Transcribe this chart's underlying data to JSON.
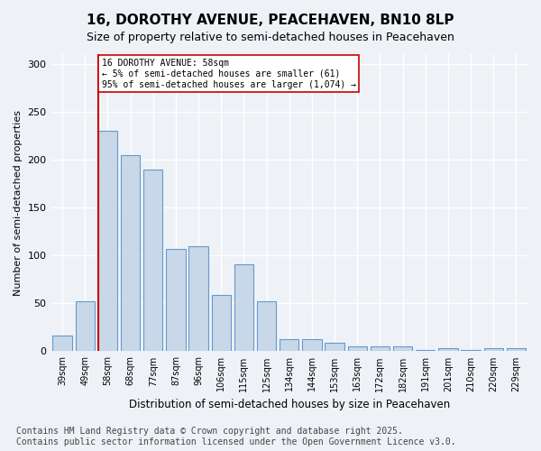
{
  "title_line1": "16, DOROTHY AVENUE, PEACEHAVEN, BN10 8LP",
  "title_line2": "Size of property relative to semi-detached houses in Peacehaven",
  "xlabel": "Distribution of semi-detached houses by size in Peacehaven",
  "ylabel": "Number of semi-detached properties",
  "categories": [
    "39sqm",
    "49sqm",
    "58sqm",
    "68sqm",
    "77sqm",
    "87sqm",
    "96sqm",
    "106sqm",
    "115sqm",
    "125sqm",
    "134sqm",
    "144sqm",
    "153sqm",
    "163sqm",
    "172sqm",
    "182sqm",
    "191sqm",
    "201sqm",
    "210sqm",
    "220sqm",
    "229sqm"
  ],
  "values": [
    16,
    52,
    230,
    205,
    190,
    107,
    110,
    59,
    91,
    52,
    13,
    13,
    9,
    5,
    5,
    5,
    1,
    3,
    1,
    3,
    3
  ],
  "bar_color": "#c8d8e8",
  "bar_edge_color": "#6699cc",
  "red_line_index": 2,
  "annotation_text": "16 DOROTHY AVENUE: 58sqm\n← 5% of semi-detached houses are smaller (61)\n95% of semi-detached houses are larger (1,074) →",
  "annotation_box_color": "#ffffff",
  "annotation_box_edge_color": "#cc0000",
  "red_line_color": "#cc0000",
  "ylim": [
    0,
    310
  ],
  "yticks": [
    0,
    50,
    100,
    150,
    200,
    250,
    300
  ],
  "footer_line1": "Contains HM Land Registry data © Crown copyright and database right 2025.",
  "footer_line2": "Contains public sector information licensed under the Open Government Licence v3.0.",
  "background_color": "#eef2f7",
  "plot_background_color": "#eef2f7",
  "grid_color": "#ffffff",
  "title_fontsize": 11,
  "subtitle_fontsize": 9,
  "footer_fontsize": 7
}
